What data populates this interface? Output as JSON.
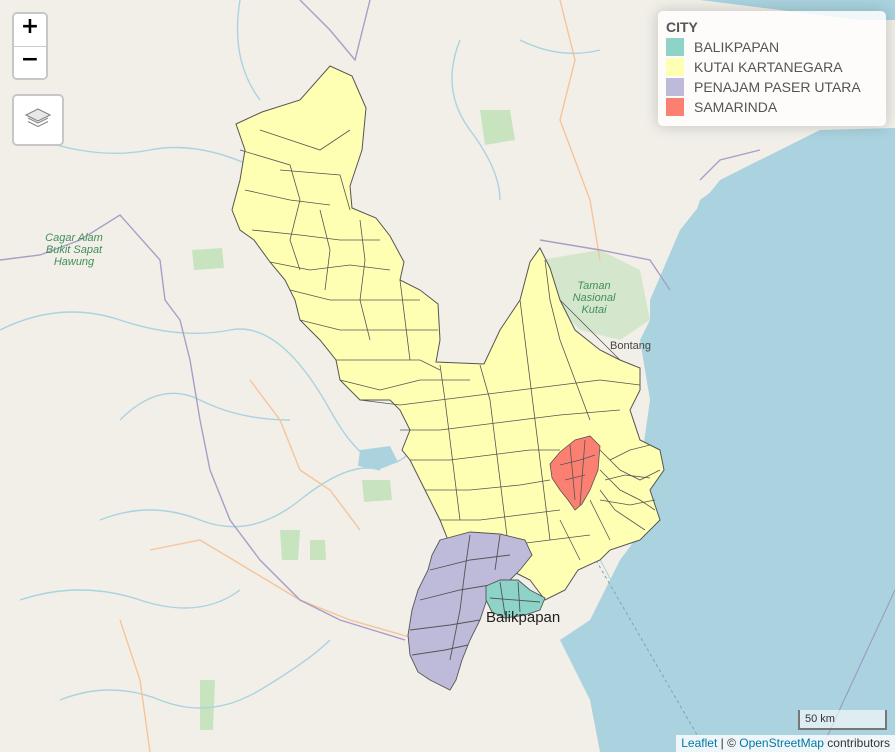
{
  "map": {
    "zoom_in_label": "+",
    "zoom_out_label": "−",
    "layers_icon": "layers-icon",
    "colors": {
      "land": "#f2efe9",
      "sea": "#aad3df",
      "river": "#aad3df",
      "park": "#c8e4bf",
      "boundary": "#9e9ec8",
      "road": "#f6c49a",
      "polygon_stroke": "#555555"
    }
  },
  "legend": {
    "title": "CITY",
    "items": [
      {
        "label": "BALIKPAPAN",
        "color": "#8dd3c7"
      },
      {
        "label": "KUTAI KARTANEGARA",
        "color": "#ffffb3"
      },
      {
        "label": "PENAJAM PASER UTARA",
        "color": "#bebada"
      },
      {
        "label": "SAMARINDA",
        "color": "#fb8072"
      }
    ]
  },
  "place_labels": {
    "cagar_alam": "Cagar Alam\nBukit Sapat\nHawung",
    "taman_nasional": "Taman\nNasional\nKutai",
    "bontang": "Bontang",
    "balikpapan": "Balikpapan"
  },
  "scale": {
    "label": "50 km"
  },
  "attribution": {
    "leaflet": "Leaflet",
    "separator": " | © ",
    "osm": "OpenStreetMap",
    "contributors": " contributors"
  }
}
